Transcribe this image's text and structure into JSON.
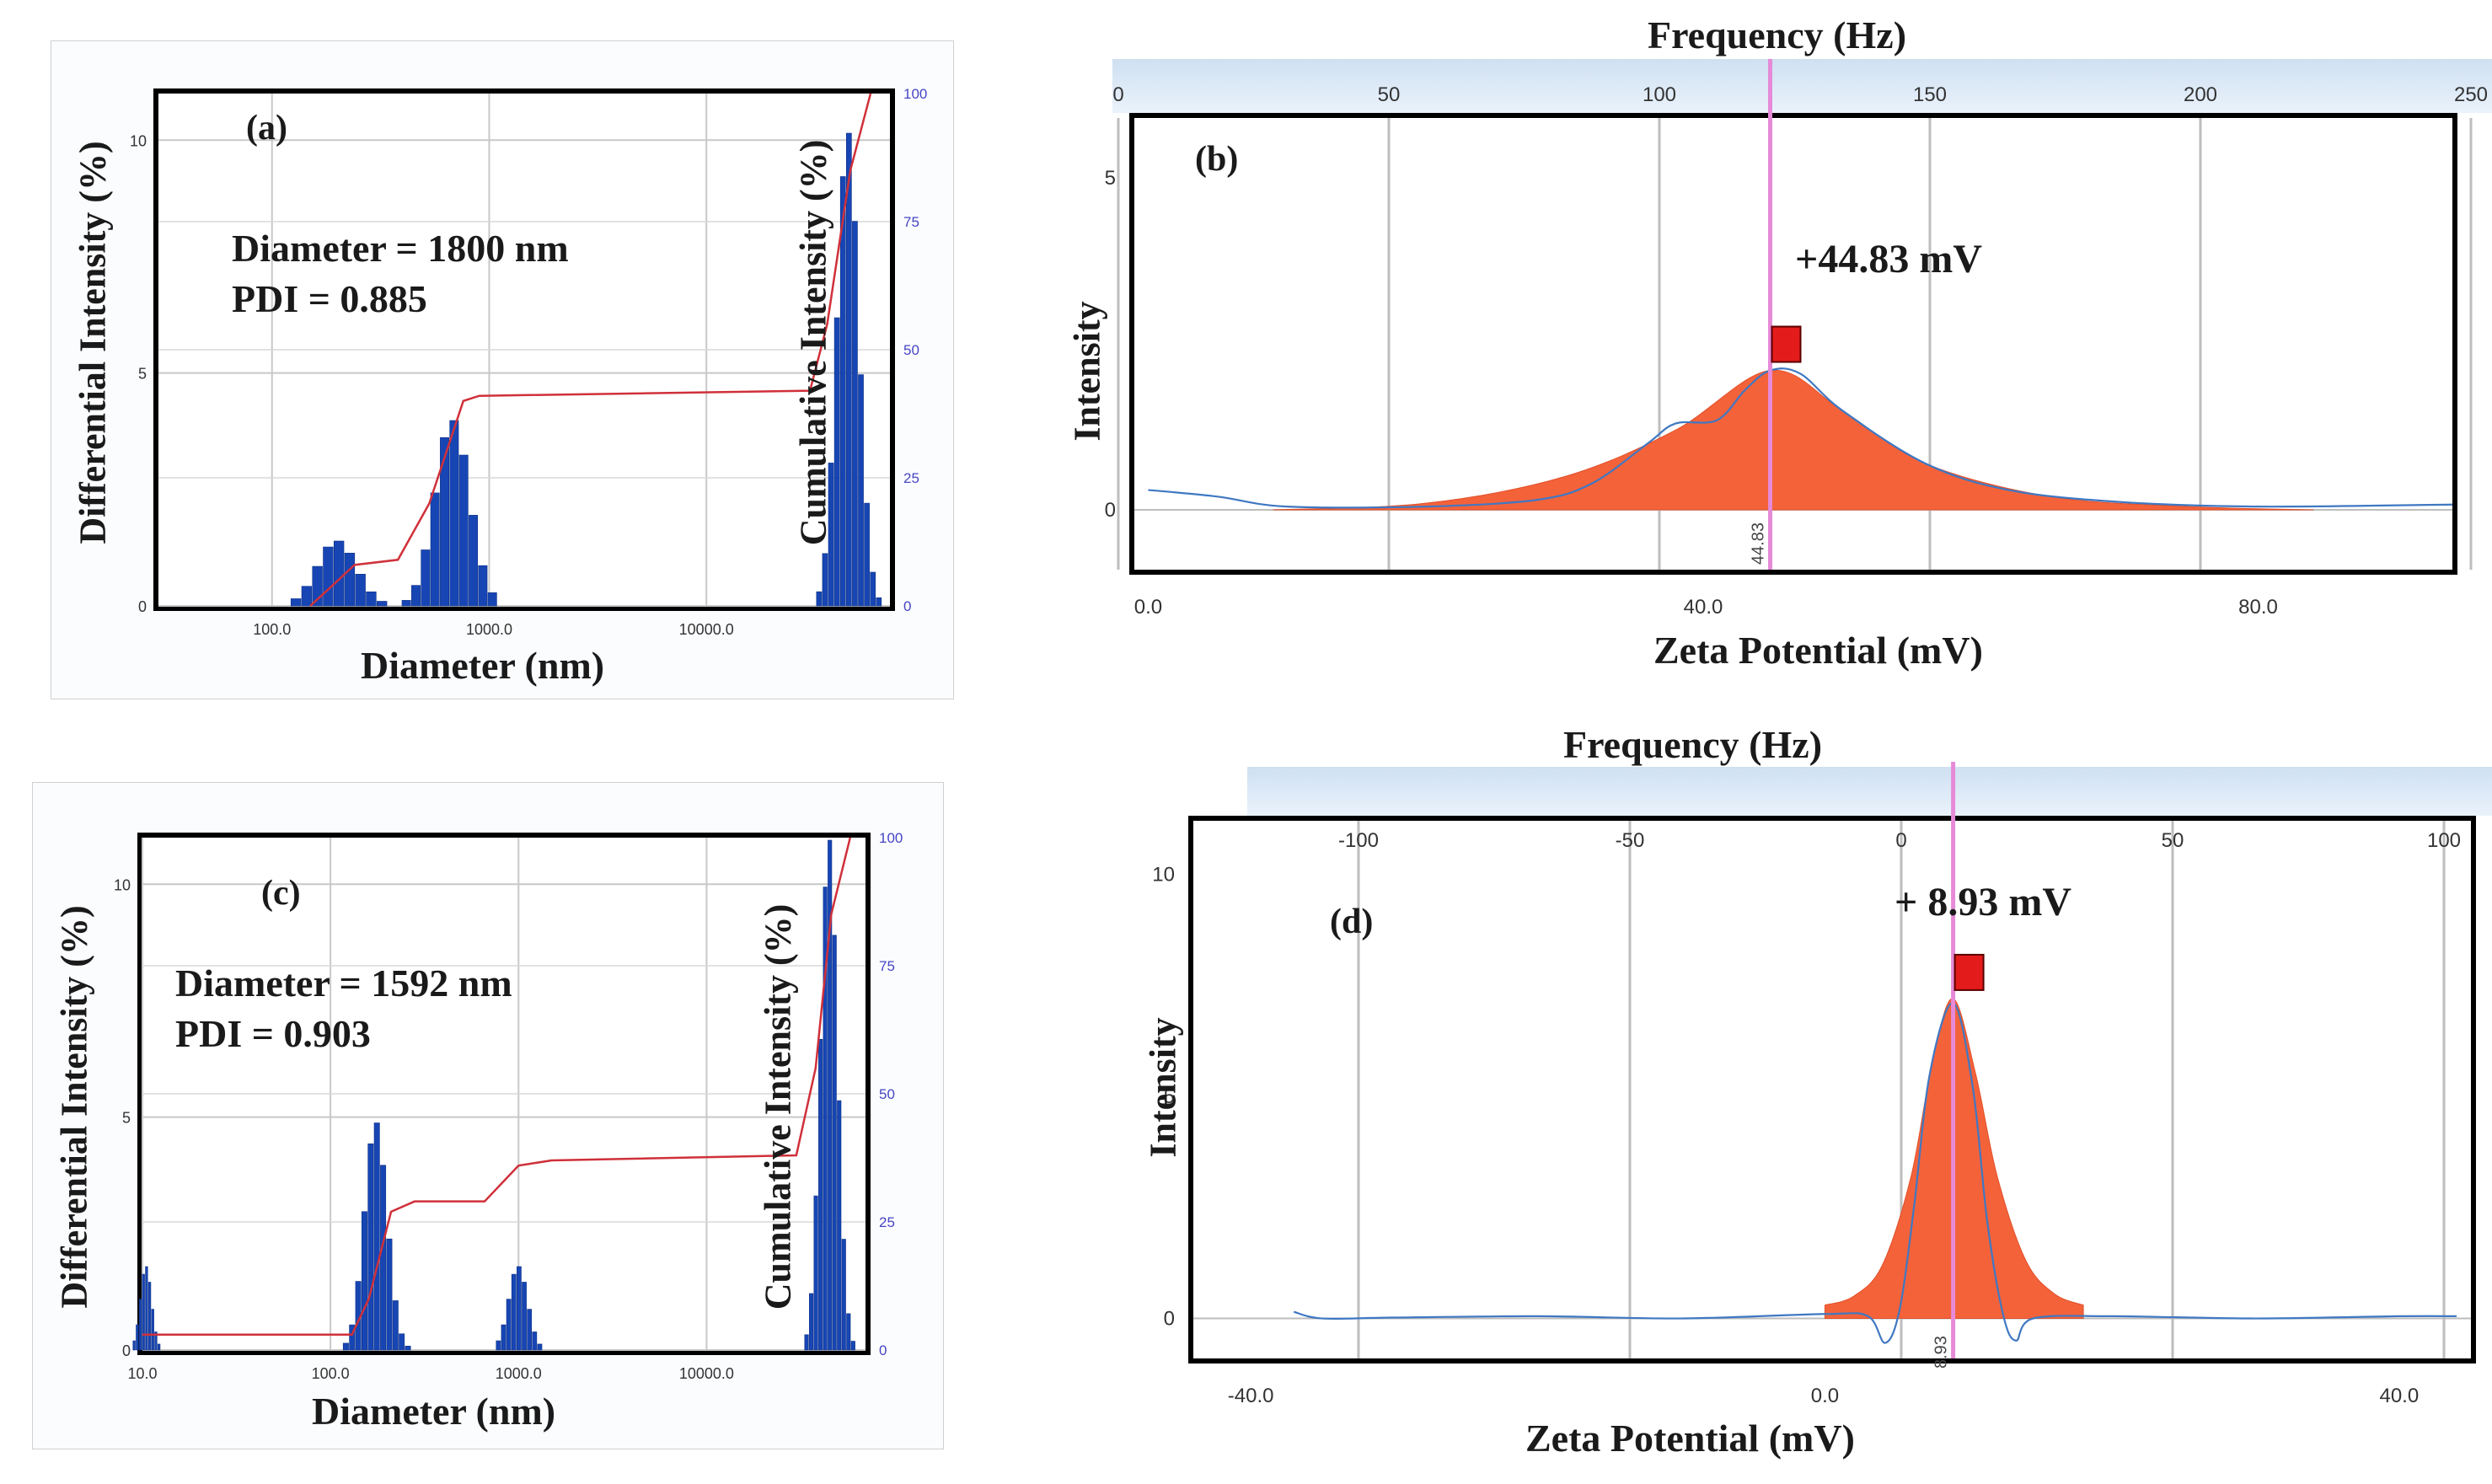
{
  "panel_a": {
    "tag": "(a)",
    "ylabel_left": "Differential Intensity (%)",
    "ylabel_right": "Cumulative Intensity (%)",
    "xlabel": "Diameter (nm)",
    "line1": "Diameter = 1800 nm",
    "line2": "PDI = 0.885"
  },
  "panel_b": {
    "tag": "(b)",
    "top_axis_title": "Frequency (Hz)",
    "ylabel": "Intensity",
    "xlabel": "Zeta Potential (mV)",
    "peak_text": "+44.83 mV",
    "marker_text": "44.83"
  },
  "panel_c": {
    "tag": "(c)",
    "ylabel_left": "Differential Intensity (%)",
    "ylabel_right": "Cumulative Intensity (%)",
    "xlabel": "Diameter (nm)",
    "line1": "Diameter = 1592 nm",
    "line2": "PDI = 0.903"
  },
  "panel_d": {
    "tag": "(d)",
    "top_axis_title": "Frequency (Hz)",
    "ylabel": "Intensity",
    "xlabel": "Zeta Potential (mV)",
    "peak_text": "+ 8.93 mV",
    "marker_text": "8.93"
  },
  "chart_data": [
    {
      "id": "a",
      "type": "bar",
      "title": "(a)",
      "xlabel": "Diameter (nm)",
      "ylabel": "Differential Intensity (%)",
      "y2label": "Cumulative Intensity (%)",
      "xscale": "log",
      "xlim": [
        30,
        70000
      ],
      "ylim": [
        0,
        11
      ],
      "y2lim": [
        0,
        100
      ],
      "xticks": [
        100,
        1000,
        10000
      ],
      "xtick_labels": [
        "100.0",
        "1000.0",
        "10000.0"
      ],
      "yticks": [
        0,
        5,
        10
      ],
      "y2ticks": [
        0,
        25,
        50,
        75,
        100
      ],
      "series": [
        {
          "name": "differential",
          "peaks": [
            {
              "center": 200,
              "height": 1.4,
              "sigma": 0.09
            },
            {
              "center": 680,
              "height": 4.0,
              "sigma": 0.08
            },
            {
              "center": 45000,
              "height": 10.2,
              "sigma": 0.05
            }
          ]
        },
        {
          "name": "cumulative",
          "points": [
            [
              150,
              0
            ],
            [
              190,
              4
            ],
            [
              240,
              8
            ],
            [
              380,
              9
            ],
            [
              530,
              20
            ],
            [
              760,
              40
            ],
            [
              900,
              41
            ],
            [
              30000,
              42
            ],
            [
              36000,
              55
            ],
            [
              46000,
              85
            ],
            [
              57000,
              100
            ]
          ]
        }
      ]
    },
    {
      "id": "b",
      "type": "area",
      "title": "(b)",
      "xlabel": "Zeta Potential (mV)",
      "ylabel": "Intensity",
      "top_axis": "Frequency (Hz)",
      "top_ticks": [
        0,
        50,
        100,
        150,
        200,
        250
      ],
      "xlim": [
        -1,
        94
      ],
      "ylim": [
        -0.9,
        5.9
      ],
      "xticks": [
        0,
        40,
        80
      ],
      "xtick_labels": [
        "0.0",
        "40.0",
        "80.0"
      ],
      "yticks": [
        0,
        5
      ],
      "peak": 44.83,
      "peak_label": "+44.83 mV",
      "series": [
        {
          "name": "distribution",
          "points": [
            [
              9,
              0
            ],
            [
              20,
              0.1
            ],
            [
              30,
              0.5
            ],
            [
              38,
              1.2
            ],
            [
              44.83,
              2.1
            ],
            [
              50,
              1.5
            ],
            [
              56,
              0.7
            ],
            [
              65,
              0.2
            ],
            [
              75,
              0.05
            ],
            [
              84,
              0
            ]
          ]
        },
        {
          "name": "phase plot",
          "points": [
            [
              0,
              0.3
            ],
            [
              5,
              0.2
            ],
            [
              10,
              0.05
            ],
            [
              20,
              0.05
            ],
            [
              28,
              0.15
            ],
            [
              32,
              0.4
            ],
            [
              36,
              1.0
            ],
            [
              38,
              1.3
            ],
            [
              41,
              1.35
            ],
            [
              43,
              1.8
            ],
            [
              44.83,
              2.1
            ],
            [
              47,
              2.05
            ],
            [
              50,
              1.5
            ],
            [
              56,
              0.7
            ],
            [
              62,
              0.3
            ],
            [
              70,
              0.12
            ],
            [
              80,
              0.05
            ],
            [
              94,
              0.08
            ]
          ]
        }
      ]
    },
    {
      "id": "c",
      "type": "bar",
      "title": "(c)",
      "xlabel": "Diameter (nm)",
      "ylabel": "Differential Intensity (%)",
      "y2label": "Cumulative Intensity (%)",
      "xscale": "log",
      "xlim": [
        10,
        70000
      ],
      "ylim": [
        0,
        11
      ],
      "y2lim": [
        0,
        100
      ],
      "xticks": [
        10,
        100,
        1000,
        10000
      ],
      "xtick_labels": [
        "10.0",
        "100.0",
        "1000.0",
        "10000.0"
      ],
      "yticks": [
        0,
        5,
        10
      ],
      "y2ticks": [
        0,
        25,
        50,
        75,
        100
      ],
      "series": [
        {
          "name": "differential",
          "peaks": [
            {
              "center": 10.5,
              "height": 1.8,
              "sigma": 0.03
            },
            {
              "center": 175,
              "height": 4.9,
              "sigma": 0.06
            },
            {
              "center": 1000,
              "height": 1.8,
              "sigma": 0.05
            },
            {
              "center": 45000,
              "height": 11,
              "sigma": 0.045
            }
          ]
        },
        {
          "name": "cumulative",
          "points": [
            [
              10,
              3
            ],
            [
              130,
              3
            ],
            [
              160,
              10
            ],
            [
              210,
              27
            ],
            [
              280,
              29
            ],
            [
              660,
              29
            ],
            [
              1000,
              36
            ],
            [
              1500,
              37
            ],
            [
              30000,
              38
            ],
            [
              38000,
              55
            ],
            [
              46000,
              85
            ],
            [
              58000,
              100
            ]
          ]
        }
      ]
    },
    {
      "id": "d",
      "type": "area",
      "title": "(d)",
      "xlabel": "Zeta Potential (mV)",
      "ylabel": "Intensity",
      "top_axis": "Frequency (Hz)",
      "top_ticks": [
        -100,
        -50,
        0,
        50,
        100
      ],
      "xlim": [
        -44,
        45
      ],
      "ylim": [
        -0.9,
        11.2
      ],
      "xticks": [
        -40,
        0,
        40
      ],
      "xtick_labels": [
        "-40.0",
        "0.0",
        "40.0"
      ],
      "yticks": [
        0,
        5,
        10
      ],
      "peak": 8.93,
      "peak_label": "+ 8.93 mV",
      "series": [
        {
          "name": "distribution",
          "points": [
            [
              0,
              0.3
            ],
            [
              2,
              0.5
            ],
            [
              4,
              1.2
            ],
            [
              6,
              3.2
            ],
            [
              7.5,
              5.8
            ],
            [
              8.93,
              7.2
            ],
            [
              10.5,
              5.5
            ],
            [
              12,
              3.2
            ],
            [
              14,
              1.3
            ],
            [
              16,
              0.55
            ],
            [
              18,
              0.3
            ]
          ]
        },
        {
          "name": "phase plot",
          "points": [
            [
              -37,
              0.15
            ],
            [
              -35,
              0
            ],
            [
              -30,
              0.02
            ],
            [
              -20,
              0.05
            ],
            [
              -10,
              0.0
            ],
            [
              0,
              0.1
            ],
            [
              3,
              0.05
            ],
            [
              4.2,
              -0.55
            ],
            [
              5.2,
              0.2
            ],
            [
              6.2,
              2.5
            ],
            [
              7.3,
              5.5
            ],
            [
              8.93,
              7.1
            ],
            [
              10.3,
              5.2
            ],
            [
              11.3,
              2.2
            ],
            [
              12.4,
              0.1
            ],
            [
              13.3,
              -0.5
            ],
            [
              14.5,
              0
            ],
            [
              20,
              0.05
            ],
            [
              30,
              0
            ],
            [
              40,
              0.05
            ],
            [
              44,
              0.05
            ]
          ]
        }
      ]
    }
  ]
}
